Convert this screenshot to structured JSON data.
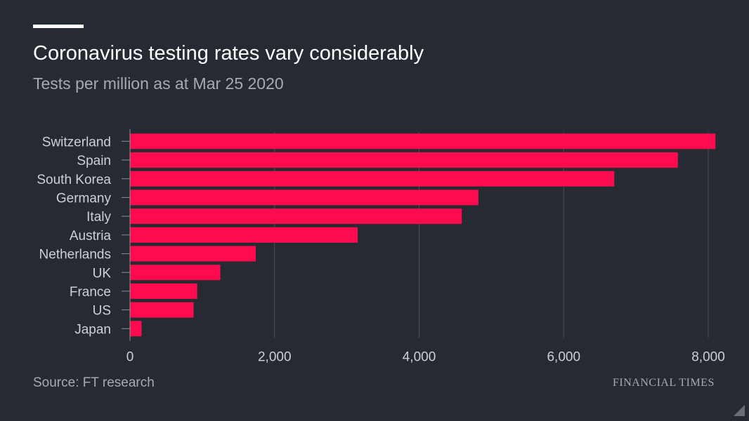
{
  "header": {
    "title": "Coronavirus testing rates vary considerably",
    "subtitle": "Tests per million as at Mar 25 2020"
  },
  "footer": {
    "source": "Source: FT research",
    "brand": "FINANCIAL TIMES"
  },
  "colors": {
    "background": "#262a33",
    "bar": "#ff0a4f",
    "label": "#cfd0d4",
    "grid": "#4a4d55"
  },
  "chart_data": {
    "type": "bar",
    "orientation": "horizontal",
    "categories": [
      "Switzerland",
      "Spain",
      "South Korea",
      "Germany",
      "Italy",
      "Austria",
      "Netherlands",
      "UK",
      "France",
      "US",
      "Japan"
    ],
    "values": [
      8100,
      7580,
      6700,
      4820,
      4590,
      3150,
      1740,
      1250,
      930,
      880,
      160
    ],
    "xlim": [
      0,
      8000
    ],
    "xticks": [
      0,
      2000,
      4000,
      6000,
      8000
    ],
    "xtick_labels": [
      "0",
      "2,000",
      "4,000",
      "6,000",
      "8,000"
    ],
    "grid": "vertical",
    "legend": "none"
  }
}
